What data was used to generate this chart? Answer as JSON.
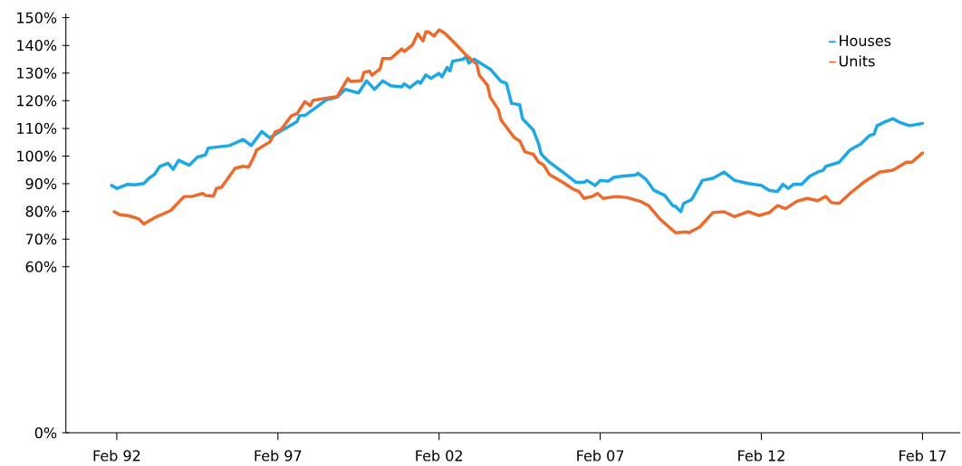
{
  "chart_data": {
    "type": "line",
    "x": [
      "1991-12",
      "1992-02",
      "1992-06",
      "1992-09",
      "1992-12",
      "1993-02",
      "1993-04",
      "1993-06",
      "1993-09",
      "1993-11",
      "1994-01",
      "1994-05",
      "1994-08",
      "1994-11",
      "1994-12",
      "1995-08",
      "1996-01",
      "1996-04",
      "1996-08",
      "1996-11",
      "1997-03",
      "1997-09",
      "1997-10",
      "1997-12",
      "1998-08",
      "1998-12",
      "1999-03",
      "1999-08",
      "1999-11",
      "2000-02",
      "2000-05",
      "2000-08",
      "2000-12",
      "2001-01",
      "2001-03",
      "2001-06",
      "2001-07",
      "2001-09",
      "2001-11",
      "2002-02",
      "2002-03",
      "2002-05",
      "2002-06",
      "2002-07",
      "2002-11",
      "2002-12",
      "2003-01",
      "2003-03",
      "2003-09",
      "2004-01",
      "2004-03",
      "2004-05",
      "2004-08",
      "2004-09",
      "2005-01",
      "2005-03",
      "2005-04",
      "2005-07",
      "2005-12",
      "2006-05",
      "2006-08",
      "2006-09",
      "2006-12",
      "2007-02",
      "2007-05",
      "2007-07",
      "2007-10",
      "2008-03",
      "2008-04",
      "2008-07",
      "2008-10",
      "2009-02",
      "2009-05",
      "2009-06",
      "2009-08",
      "2009-09",
      "2009-12",
      "2010-04",
      "2010-08",
      "2010-12",
      "2011-04",
      "2011-09",
      "2012-02",
      "2012-05",
      "2012-08",
      "2012-10",
      "2012-12",
      "2013-02",
      "2013-05",
      "2013-08",
      "2013-11",
      "2014-01",
      "2014-02",
      "2014-07",
      "2014-11",
      "2015-03",
      "2015-06",
      "2015-08",
      "2015-09",
      "2015-12",
      "2016-03",
      "2016-05",
      "2016-09",
      "2017-02"
    ],
    "series": [
      {
        "name": "Houses",
        "color": "#1ea7e6",
        "values": [
          89.4,
          88.3,
          89.8,
          89.6,
          90.1,
          92.0,
          93.4,
          96.3,
          97.4,
          95.2,
          98.5,
          96.7,
          99.6,
          100.4,
          102.9,
          103.8,
          106.0,
          103.8,
          108.9,
          106.6,
          109.1,
          112.4,
          114.6,
          114.7,
          120.3,
          121.3,
          124.1,
          122.8,
          127.2,
          124.1,
          127.2,
          125.4,
          125.0,
          126.1,
          124.7,
          127.0,
          126.3,
          129.3,
          128.1,
          129.9,
          128.6,
          132.0,
          130.8,
          134.3,
          135.0,
          136.1,
          133.6,
          135.0,
          131.4,
          127.0,
          126.3,
          119.0,
          118.6,
          113.5,
          109.5,
          104.4,
          100.7,
          97.8,
          94.2,
          90.5,
          90.5,
          91.2,
          89.4,
          91.2,
          90.9,
          92.3,
          92.7,
          93.1,
          93.8,
          91.6,
          87.6,
          85.8,
          82.1,
          81.8,
          79.9,
          82.9,
          84.3,
          91.2,
          92.0,
          94.2,
          91.2,
          90.1,
          89.4,
          87.6,
          87.2,
          89.8,
          88.3,
          89.8,
          89.8,
          92.7,
          94.2,
          94.9,
          96.3,
          97.8,
          102.2,
          104.4,
          107.3,
          108.0,
          111.0,
          112.4,
          113.5,
          112.4,
          111.0,
          111.8
        ]
      },
      {
        "name": "Units",
        "color": "#ec6a2c",
        "x": [
          "1992-01",
          "1992-03",
          "1992-06",
          "1992-10",
          "1992-12",
          "1993-04",
          "1993-10",
          "1994-03",
          "1994-06",
          "1994-10",
          "1994-11",
          "1995-02",
          "1995-03",
          "1995-05",
          "1995-10",
          "1996-01",
          "1996-03",
          "1996-05",
          "1996-06",
          "1996-11",
          "1997-01",
          "1997-03",
          "1997-07",
          "1997-09",
          "1997-12",
          "1998-02",
          "1998-03",
          "1998-07",
          "1998-12",
          "1999-04",
          "1999-05",
          "1999-09",
          "1999-10",
          "1999-12",
          "2000-01",
          "2000-04",
          "2000-05",
          "2000-08",
          "2000-12",
          "2001-01",
          "2001-04",
          "2001-06",
          "2001-08",
          "2001-09",
          "2001-10",
          "2001-12",
          "2002-02",
          "2002-04",
          "2002-07",
          "2002-12",
          "2003-04",
          "2003-05",
          "2003-08",
          "2003-09",
          "2003-12",
          "2004-01",
          "2004-06",
          "2004-08",
          "2004-10",
          "2005-01",
          "2005-03",
          "2005-05",
          "2005-07",
          "2005-12",
          "2006-04",
          "2006-06",
          "2006-08",
          "2006-11",
          "2007-01",
          "2007-03",
          "2007-08",
          "2007-12",
          "2008-05",
          "2008-08",
          "2008-12",
          "2009-03",
          "2009-06",
          "2009-10",
          "2009-11",
          "2010-03",
          "2010-08",
          "2010-12",
          "2011-04",
          "2011-09",
          "2012-01",
          "2012-05",
          "2012-08",
          "2012-11",
          "2013-03",
          "2013-07",
          "2013-11",
          "2014-02",
          "2014-04",
          "2014-07",
          "2014-11",
          "2015-04",
          "2015-10",
          "2016-03",
          "2016-08",
          "2016-10",
          "2017-02"
        ],
        "values": [
          79.9,
          78.8,
          78.5,
          77.4,
          75.5,
          77.7,
          80.3,
          85.4,
          85.4,
          86.5,
          85.8,
          85.5,
          88.3,
          88.7,
          95.6,
          96.3,
          96.0,
          99.6,
          102.2,
          105.1,
          108.8,
          109.5,
          114.6,
          115.3,
          119.7,
          118.2,
          120.1,
          120.8,
          121.5,
          128.1,
          127.0,
          127.2,
          130.3,
          130.7,
          129.2,
          131.5,
          135.2,
          135.2,
          138.7,
          137.8,
          140.1,
          144.2,
          141.6,
          144.9,
          144.9,
          143.4,
          145.6,
          144.5,
          141.6,
          136.5,
          133.2,
          129.2,
          125.6,
          121.2,
          116.8,
          113.1,
          106.6,
          105.5,
          101.5,
          100.7,
          97.8,
          96.7,
          93.4,
          90.5,
          88.0,
          87.2,
          84.7,
          85.4,
          86.5,
          84.7,
          85.4,
          85.0,
          83.6,
          82.1,
          77.4,
          74.8,
          72.3,
          72.6,
          72.3,
          74.4,
          79.6,
          79.9,
          78.1,
          79.9,
          78.5,
          79.6,
          82.1,
          81.0,
          83.6,
          84.7,
          83.9,
          85.4,
          83.2,
          82.9,
          86.5,
          90.5,
          94.2,
          94.9,
          97.8,
          97.8,
          101.1
        ]
      }
    ],
    "xlim": [
      "1990-07",
      "2018-04"
    ],
    "xticks": [
      {
        "value": "1992-02",
        "label": "Feb 92"
      },
      {
        "value": "1997-02",
        "label": "Feb 97"
      },
      {
        "value": "2002-02",
        "label": "Feb 02"
      },
      {
        "value": "2007-02",
        "label": "Feb 07"
      },
      {
        "value": "2012-02",
        "label": "Feb 12"
      },
      {
        "value": "2017-02",
        "label": "Feb 17"
      }
    ],
    "ylim": [
      0,
      151.5
    ],
    "yticks": [
      {
        "value": 0,
        "label": "0%"
      },
      {
        "value": 60,
        "label": "60%"
      },
      {
        "value": 70,
        "label": "70%"
      },
      {
        "value": 80,
        "label": "80%"
      },
      {
        "value": 90,
        "label": "90%"
      },
      {
        "value": 100,
        "label": "100%"
      },
      {
        "value": 110,
        "label": "110%"
      },
      {
        "value": 120,
        "label": "120%"
      },
      {
        "value": 130,
        "label": "130%"
      },
      {
        "value": 140,
        "label": "140%"
      },
      {
        "value": 150,
        "label": "150%"
      }
    ],
    "grid": false,
    "legend": "top right",
    "marker": "none",
    "line_style": "solid"
  }
}
